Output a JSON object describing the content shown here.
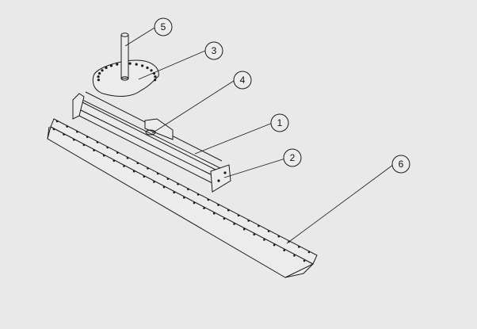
{
  "diagram": {
    "background_color": "#e9e9e9",
    "line_color": "#1a1a1a",
    "balloons": [
      {
        "id": "b5",
        "label": "5"
      },
      {
        "id": "b3",
        "label": "3"
      },
      {
        "id": "b4",
        "label": "4"
      },
      {
        "id": "b1",
        "label": "1"
      },
      {
        "id": "b2",
        "label": "2"
      },
      {
        "id": "b6",
        "label": "6"
      }
    ]
  }
}
